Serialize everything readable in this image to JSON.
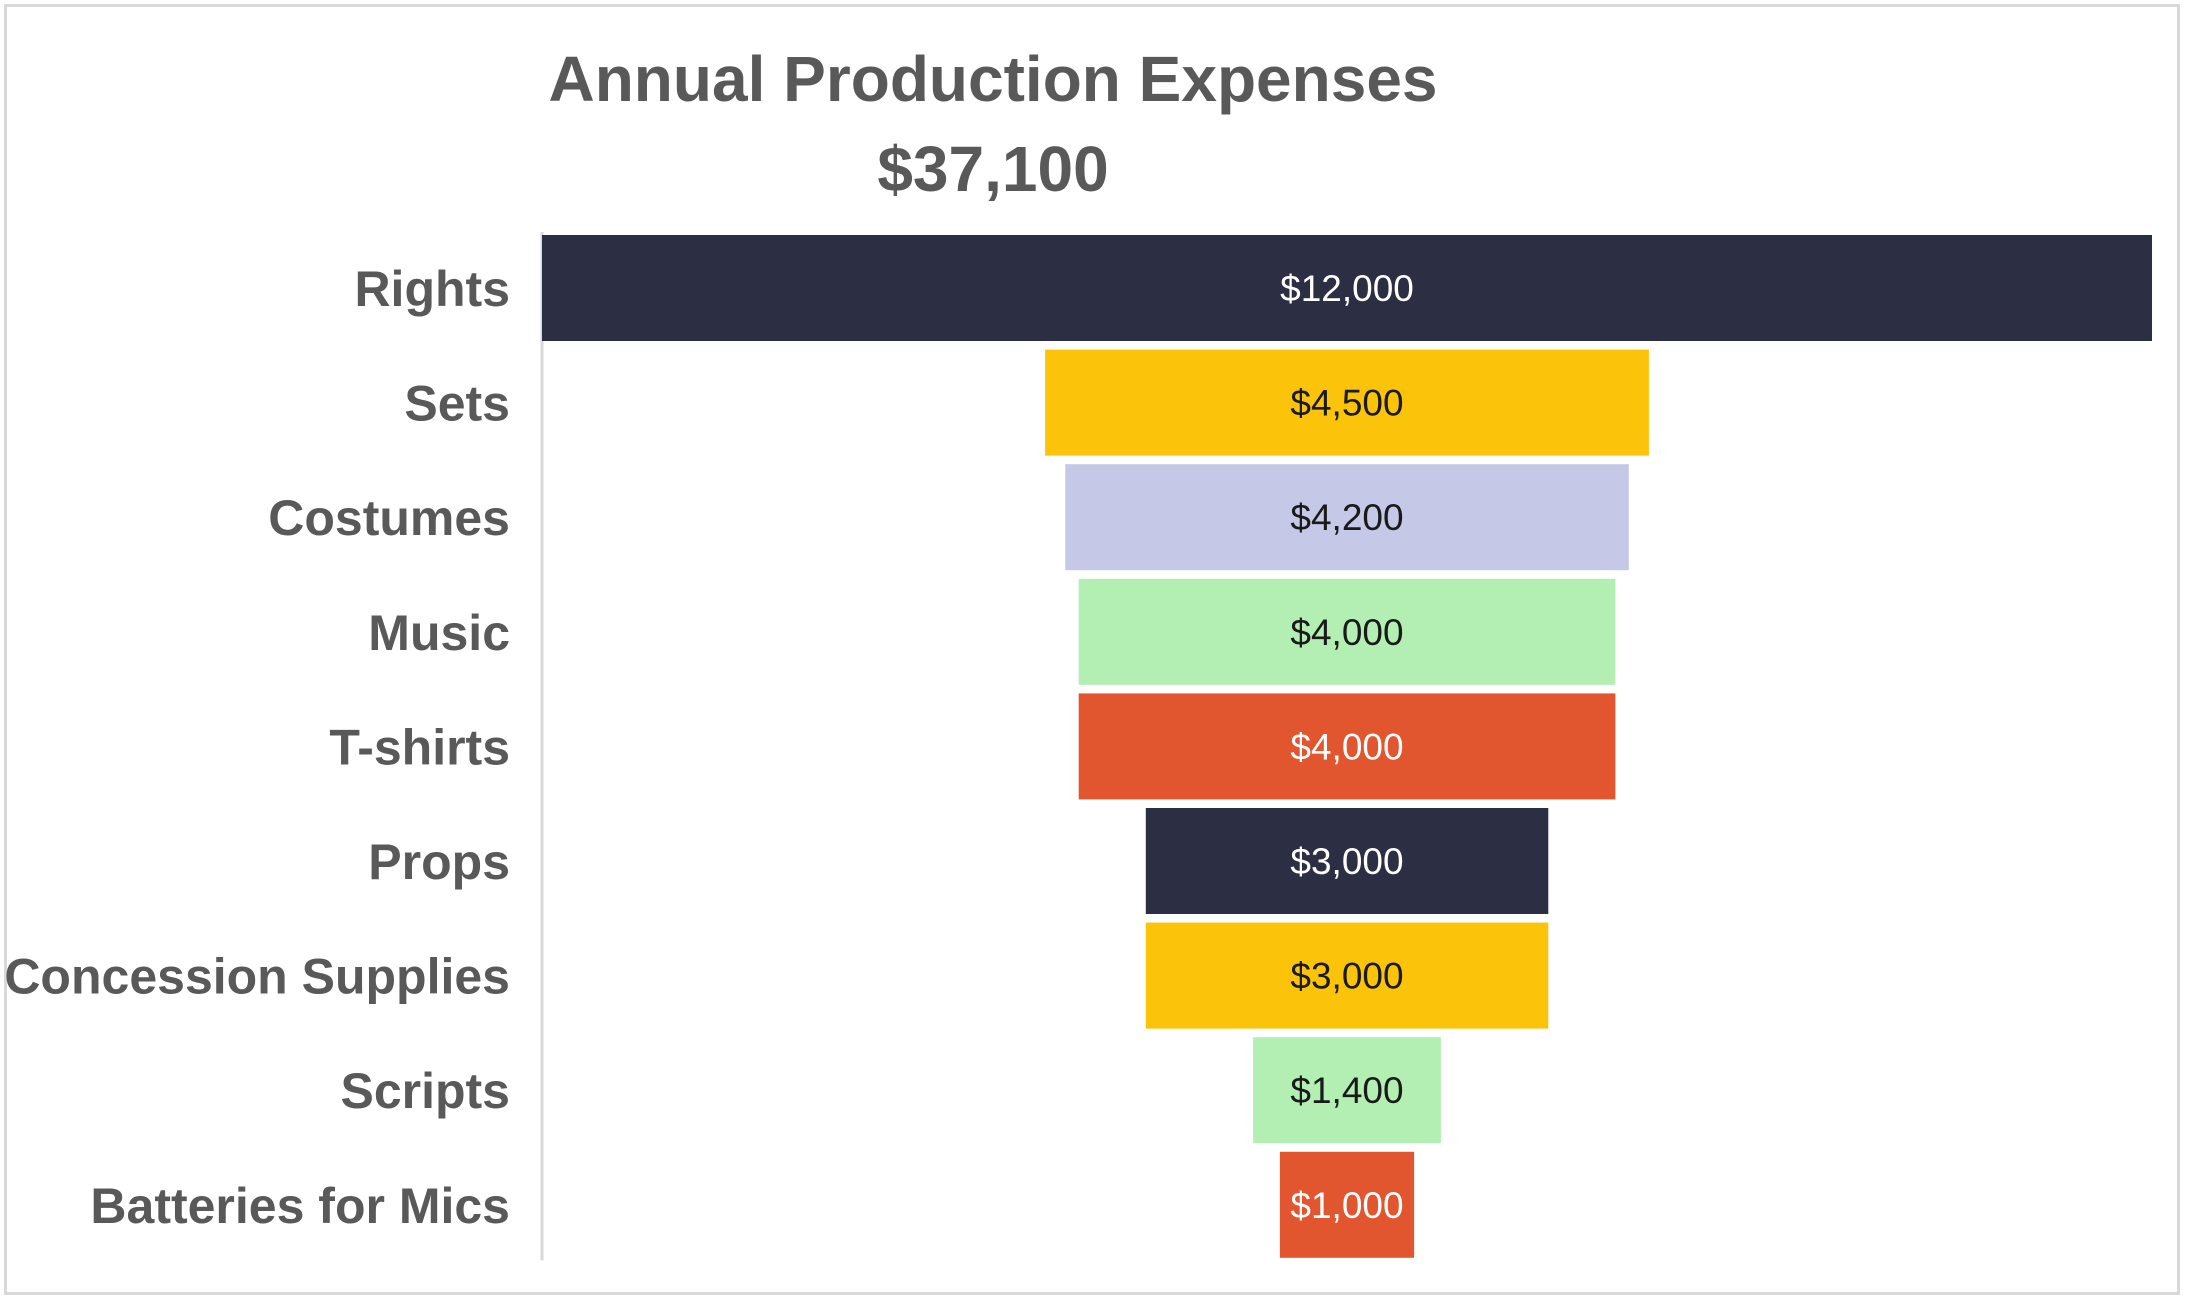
{
  "chart_data": {
    "type": "funnel",
    "title": "Annual Production Expenses",
    "subtitle": "$37,100",
    "categories": [
      "Rights",
      "Sets",
      "Costumes",
      "Music",
      "T-shirts",
      "Props",
      "Concession Supplies",
      "Scripts",
      "Batteries for Mics"
    ],
    "values": [
      12000,
      4500,
      4200,
      4000,
      4000,
      3000,
      3000,
      1400,
      1000
    ],
    "value_labels": [
      "$12,000",
      "$4,500",
      "$4,200",
      "$4,000",
      "$4,000",
      "$3,000",
      "$3,000",
      "$1,400",
      "$1,000"
    ],
    "colors": [
      "#2c2e43",
      "#fbc40a",
      "#c5c8e6",
      "#b3efb2",
      "#e1562f",
      "#2c2e43",
      "#fbc40a",
      "#b3efb2",
      "#e1562f"
    ],
    "label_colors": [
      "#ffffff",
      "#1a1a1a",
      "#1a1a1a",
      "#1a1a1a",
      "#ffffff",
      "#ffffff",
      "#1a1a1a",
      "#1a1a1a",
      "#ffffff"
    ],
    "xlabel": "",
    "ylabel": "",
    "legend": "none",
    "grid": false
  }
}
